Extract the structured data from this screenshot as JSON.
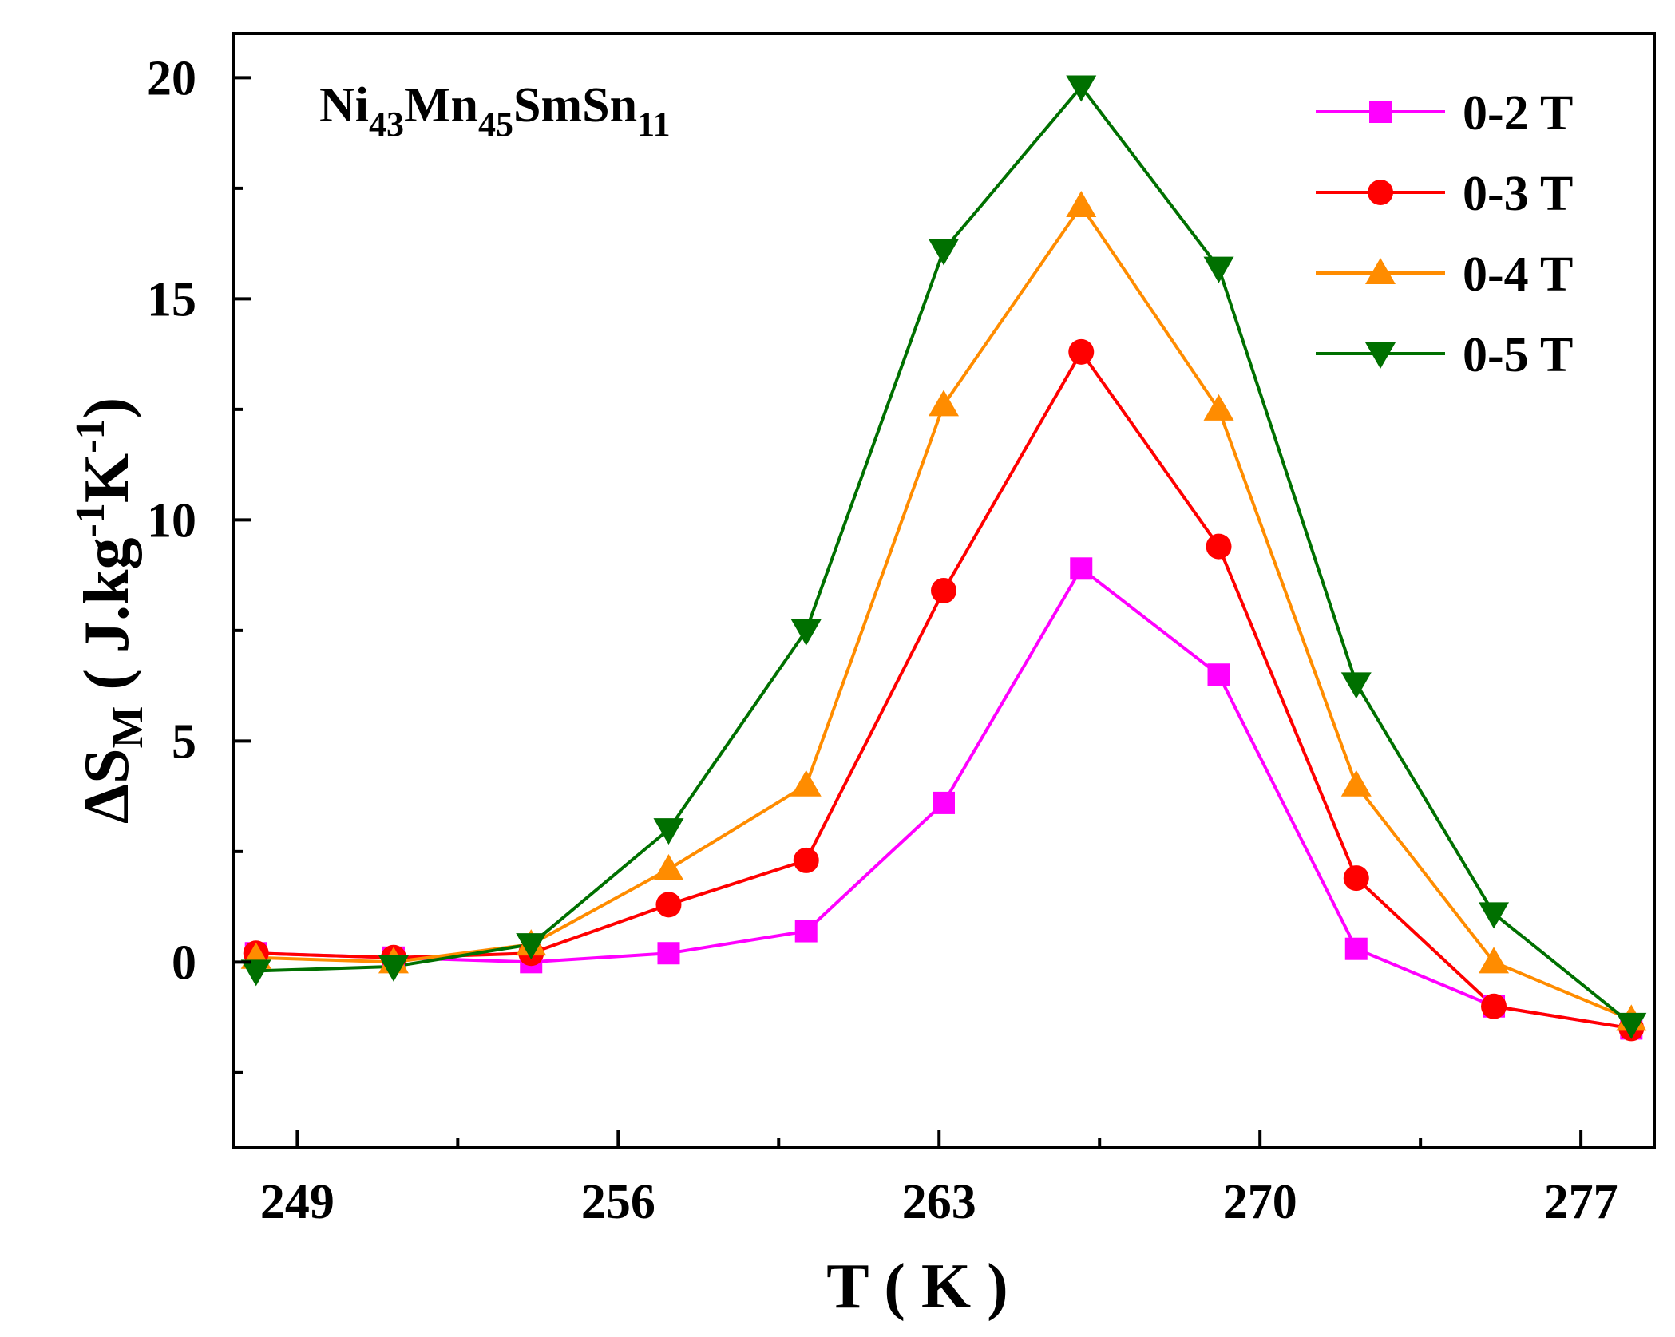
{
  "chart_data": {
    "type": "line",
    "title": "",
    "annotation": {
      "parts": [
        {
          "text": "Ni",
          "sub": "43"
        },
        {
          "text": "Mn",
          "sub": "45"
        },
        {
          "text": "SmSn",
          "sub": "11"
        }
      ]
    },
    "xlabel": "T ( K )",
    "ylabel": {
      "prefix": "ΔS",
      "sub": "M",
      "unit_open": " ( J.kg",
      "sup1": "-1",
      "unit_mid": "K",
      "sup2": "-1",
      "unit_close": ")"
    },
    "xlim": [
      247.6,
      278.6
    ],
    "ylim": [
      -4.2,
      21
    ],
    "xticks": [
      249,
      256,
      263,
      270,
      277
    ],
    "yticks": [
      0,
      5,
      10,
      15,
      20
    ],
    "xtick_labels": [
      "249",
      "256",
      "263",
      "270",
      "277"
    ],
    "ytick_labels": [
      "0",
      "5",
      "10",
      "15",
      "20"
    ],
    "legend_position": "top-right",
    "x": [
      248.1,
      251.1,
      254.1,
      257.1,
      260.1,
      263.1,
      266.1,
      269.1,
      272.1,
      275.1,
      278.1
    ],
    "series": [
      {
        "name": "0-2 T",
        "marker": "square",
        "color": "#ff00ff",
        "values": [
          0.2,
          0.1,
          0.0,
          0.2,
          0.7,
          3.6,
          8.9,
          6.5,
          0.3,
          -1.0,
          -1.5
        ]
      },
      {
        "name": "0-3 T",
        "marker": "circle",
        "color": "#ff0000",
        "values": [
          0.2,
          0.1,
          0.2,
          1.3,
          2.3,
          8.4,
          13.8,
          9.4,
          1.9,
          -1.0,
          -1.5
        ]
      },
      {
        "name": "0-4 T",
        "marker": "triangle-up",
        "color": "#ff8c00",
        "values": [
          0.1,
          0.0,
          0.4,
          2.1,
          4.0,
          12.6,
          17.1,
          12.5,
          4.0,
          0.0,
          -1.3
        ]
      },
      {
        "name": "0-5 T",
        "marker": "triangle-down",
        "color": "#007000",
        "values": [
          -0.2,
          -0.1,
          0.4,
          3.0,
          7.5,
          16.1,
          19.8,
          15.7,
          6.3,
          1.1,
          -1.4
        ]
      }
    ]
  }
}
